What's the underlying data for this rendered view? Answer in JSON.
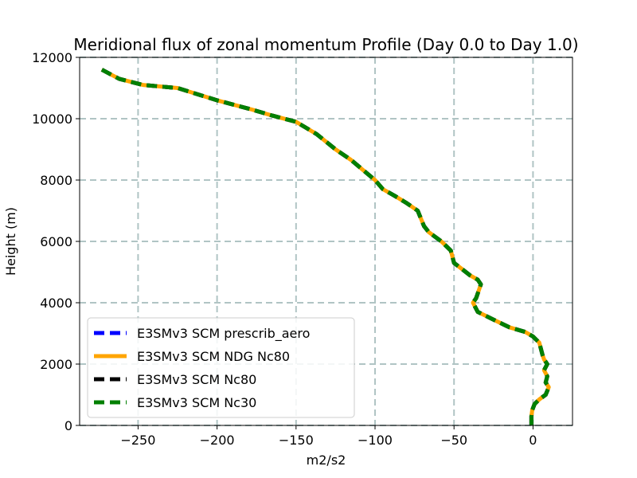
{
  "chart_data": {
    "type": "line",
    "title": "Meridional flux of zonal momentum Profile (Day 0.0 to Day 1.0)",
    "xlabel": "m2/s2",
    "ylabel": "Height (m)",
    "xlim": [
      -287,
      25
    ],
    "ylim": [
      0,
      12000
    ],
    "xticks": [
      -250,
      -200,
      -150,
      -100,
      -50,
      0
    ],
    "xtick_labels": [
      "−250",
      "−200",
      "−150",
      "−100",
      "−50",
      "0"
    ],
    "yticks": [
      0,
      2000,
      4000,
      6000,
      8000,
      10000,
      12000
    ],
    "ytick_labels": [
      "0",
      "2000",
      "4000",
      "6000",
      "8000",
      "10000",
      "12000"
    ],
    "grid": true,
    "legend_position": "lower-left",
    "series": [
      {
        "name": "E3SMv3 SCM prescrib_aero",
        "color": "#0000ff",
        "style": "dashed",
        "x": [
          -1,
          -1,
          -1,
          -0.5,
          1,
          4,
          8,
          10,
          8,
          9,
          7,
          9,
          7,
          6,
          5,
          4,
          0,
          -5,
          -15,
          -25,
          -35,
          -38,
          -36,
          -33,
          -35,
          -40,
          -45,
          -50,
          -52,
          -58,
          -66,
          -69,
          -73,
          -80,
          -88,
          -95,
          -100,
          -107,
          -115,
          -125,
          -137,
          -150,
          -165,
          -178,
          -200,
          -225,
          -247,
          -262,
          -273
        ],
        "y": [
          0,
          150,
          300,
          500,
          700,
          850,
          1000,
          1250,
          1400,
          1600,
          1800,
          2000,
          2150,
          2300,
          2500,
          2700,
          2900,
          3050,
          3200,
          3450,
          3700,
          4000,
          4150,
          4600,
          4750,
          4900,
          5100,
          5300,
          5700,
          6000,
          6300,
          6500,
          7000,
          7250,
          7500,
          7700,
          8000,
          8300,
          8650,
          9000,
          9500,
          9900,
          10100,
          10300,
          10600,
          11000,
          11100,
          11300,
          11600
        ]
      },
      {
        "name": "E3SMv3 SCM NDG Nc80",
        "color": "#ffa500",
        "style": "solid",
        "x": [
          -1,
          -1,
          -1,
          -0.5,
          1,
          4,
          8,
          10,
          8,
          9,
          7,
          9,
          7,
          6,
          5,
          4,
          0,
          -5,
          -15,
          -25,
          -35,
          -38,
          -36,
          -33,
          -35,
          -40,
          -45,
          -50,
          -52,
          -58,
          -66,
          -69,
          -73,
          -80,
          -88,
          -95,
          -100,
          -107,
          -115,
          -125,
          -137,
          -150,
          -165,
          -178,
          -200,
          -225,
          -247,
          -262,
          -273
        ],
        "y": [
          0,
          150,
          300,
          500,
          700,
          850,
          1000,
          1250,
          1400,
          1600,
          1800,
          2000,
          2150,
          2300,
          2500,
          2700,
          2900,
          3050,
          3200,
          3450,
          3700,
          4000,
          4150,
          4600,
          4750,
          4900,
          5100,
          5300,
          5700,
          6000,
          6300,
          6500,
          7000,
          7250,
          7500,
          7700,
          8000,
          8300,
          8650,
          9000,
          9500,
          9900,
          10100,
          10300,
          10600,
          11000,
          11100,
          11300,
          11600
        ]
      },
      {
        "name": "E3SMv3 SCM Nc80",
        "color": "#000000",
        "style": "dashed",
        "x": [
          -1,
          -1,
          -1,
          -0.5,
          1,
          4,
          8,
          10,
          8,
          9,
          7,
          9,
          7,
          6,
          5,
          4,
          0,
          -5,
          -15,
          -25,
          -35,
          -38,
          -36,
          -33,
          -35,
          -40,
          -45,
          -50,
          -52,
          -58,
          -66,
          -69,
          -73,
          -80,
          -88,
          -95,
          -100,
          -107,
          -115,
          -125,
          -137,
          -150,
          -165,
          -178,
          -200,
          -225,
          -247,
          -262,
          -273
        ],
        "y": [
          0,
          150,
          300,
          500,
          700,
          850,
          1000,
          1250,
          1400,
          1600,
          1800,
          2000,
          2150,
          2300,
          2500,
          2700,
          2900,
          3050,
          3200,
          3450,
          3700,
          4000,
          4150,
          4600,
          4750,
          4900,
          5100,
          5300,
          5700,
          6000,
          6300,
          6500,
          7000,
          7250,
          7500,
          7700,
          8000,
          8300,
          8650,
          9000,
          9500,
          9900,
          10100,
          10300,
          10600,
          11000,
          11100,
          11300,
          11600
        ]
      },
      {
        "name": "E3SMv3 SCM Nc30",
        "color": "#008000",
        "style": "dashed",
        "x": [
          -1,
          -1,
          -1,
          -0.5,
          1,
          4,
          8,
          10,
          8,
          9,
          7,
          9,
          7,
          6,
          5,
          4,
          0,
          -5,
          -15,
          -25,
          -35,
          -38,
          -36,
          -33,
          -35,
          -40,
          -45,
          -50,
          -52,
          -58,
          -66,
          -69,
          -73,
          -80,
          -88,
          -95,
          -100,
          -107,
          -115,
          -125,
          -137,
          -150,
          -165,
          -178,
          -200,
          -225,
          -247,
          -262,
          -273
        ],
        "y": [
          0,
          150,
          300,
          500,
          700,
          850,
          1000,
          1250,
          1400,
          1600,
          1800,
          2000,
          2150,
          2300,
          2500,
          2700,
          2900,
          3050,
          3200,
          3450,
          3700,
          4000,
          4150,
          4600,
          4750,
          4900,
          5100,
          5300,
          5700,
          6000,
          6300,
          6500,
          7000,
          7250,
          7500,
          7700,
          8000,
          8300,
          8650,
          9000,
          9500,
          9900,
          10100,
          10300,
          10600,
          11000,
          11100,
          11300,
          11600
        ]
      }
    ]
  },
  "colors": {
    "grid": "#b0c4c4",
    "axes": "#000000",
    "background": "#ffffff"
  }
}
